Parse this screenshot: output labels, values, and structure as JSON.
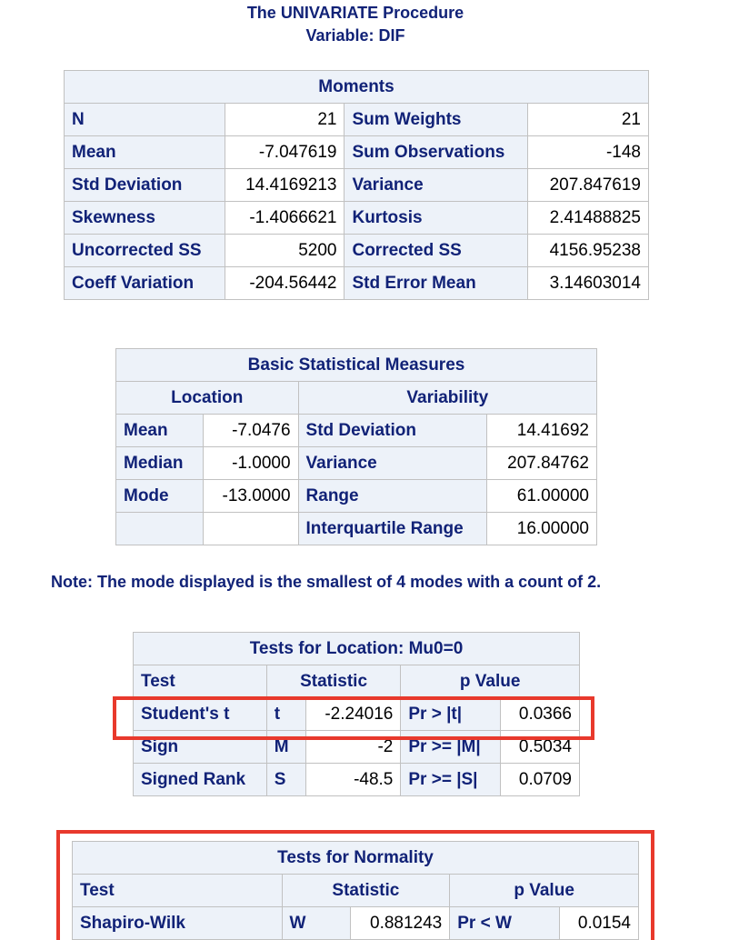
{
  "header": {
    "procedure": "The UNIVARIATE Procedure",
    "variable": "Variable: DIF"
  },
  "moments": {
    "title": "Moments",
    "rows": [
      {
        "l1": "N",
        "v1": "21",
        "l2": "Sum Weights",
        "v2": "21"
      },
      {
        "l1": "Mean",
        "v1": "-7.047619",
        "l2": "Sum Observations",
        "v2": "-148"
      },
      {
        "l1": "Std Deviation",
        "v1": "14.4169213",
        "l2": "Variance",
        "v2": "207.847619"
      },
      {
        "l1": "Skewness",
        "v1": "-1.4066621",
        "l2": "Kurtosis",
        "v2": "2.41488825"
      },
      {
        "l1": "Uncorrected SS",
        "v1": "5200",
        "l2": "Corrected SS",
        "v2": "4156.95238"
      },
      {
        "l1": "Coeff Variation",
        "v1": "-204.56442",
        "l2": "Std Error Mean",
        "v2": "3.14603014"
      }
    ]
  },
  "basic": {
    "title": "Basic Statistical Measures",
    "location_header": "Location",
    "variability_header": "Variability",
    "rows": [
      {
        "l1": "Mean",
        "v1": "-7.0476",
        "l2": "Std Deviation",
        "v2": "14.41692"
      },
      {
        "l1": "Median",
        "v1": "-1.0000",
        "l2": "Variance",
        "v2": "207.84762"
      },
      {
        "l1": "Mode",
        "v1": "-13.0000",
        "l2": "Range",
        "v2": "61.00000"
      },
      {
        "l1": "",
        "v1": "",
        "l2": "Interquartile Range",
        "v2": "16.00000"
      }
    ]
  },
  "note": "Note: The mode displayed is the smallest of 4 modes with a count of 2.",
  "location_tests": {
    "title": "Tests for Location: Mu0=0",
    "col_test": "Test",
    "col_statistic": "Statistic",
    "col_pvalue": "p Value",
    "rows": [
      {
        "test": "Student's t",
        "sym": "t",
        "stat": "-2.24016",
        "plabel": "Pr > |t|",
        "pval": "0.0366"
      },
      {
        "test": "Sign",
        "sym": "M",
        "stat": "-2",
        "plabel": "Pr >= |M|",
        "pval": "0.5034"
      },
      {
        "test": "Signed Rank",
        "sym": "S",
        "stat": "-48.5",
        "plabel": "Pr >= |S|",
        "pval": "0.0709"
      }
    ]
  },
  "normality": {
    "title": "Tests for Normality",
    "col_test": "Test",
    "col_statistic": "Statistic",
    "col_pvalue": "p Value",
    "rows": [
      {
        "test": "Shapiro-Wilk",
        "sym": "W",
        "stat": "0.881243",
        "plabel": "Pr < W",
        "pval": "0.0154"
      }
    ]
  },
  "highlight_color": "#e8392c"
}
